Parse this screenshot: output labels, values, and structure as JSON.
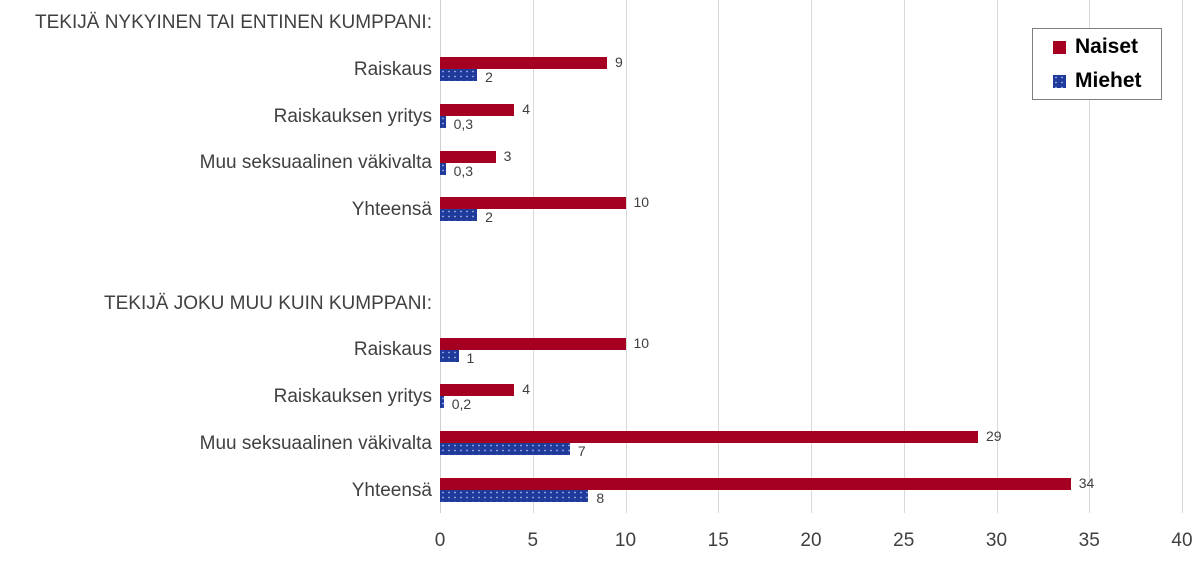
{
  "chart_data": {
    "type": "bar",
    "orientation": "horizontal",
    "title": "",
    "xlabel": "",
    "ylabel": "",
    "xlim": [
      0,
      40
    ],
    "x_ticks": [
      0,
      5,
      10,
      15,
      20,
      25,
      30,
      35,
      40
    ],
    "grid": true,
    "legend_position": "top-right",
    "categories": [
      "TEKIJÄ NYKYINEN TAI ENTINEN KUMPPANI:",
      "Raiskaus",
      "Raiskauksen yritys",
      "Muu seksuaalinen väkivalta",
      "Yhteensä",
      "",
      "TEKIJÄ JOKU MUU KUIN KUMPPANI:",
      "Raiskaus",
      "Raiskauksen yritys",
      "Muu seksuaalinen väkivalta",
      "Yhteensä"
    ],
    "series": [
      {
        "name": "Naiset",
        "color": "#a50021",
        "values": [
          null,
          9,
          4,
          3,
          10,
          null,
          null,
          10,
          4,
          29,
          34
        ],
        "labels": [
          "",
          "9",
          "4",
          "3",
          "10",
          "",
          "",
          "10",
          "4",
          "29",
          "34"
        ]
      },
      {
        "name": "Miehet",
        "color": "#1f3a9a",
        "values": [
          null,
          2,
          0.3,
          0.3,
          2,
          null,
          null,
          1,
          0.2,
          7,
          8
        ],
        "labels": [
          "",
          "2",
          "0,3",
          "0,3",
          "2",
          "",
          "",
          "1",
          "0,2",
          "7",
          "8"
        ]
      }
    ]
  },
  "legend": {
    "naiset": "Naiset",
    "miehet": "Miehet"
  },
  "ticks": [
    "0",
    "5",
    "10",
    "15",
    "20",
    "25",
    "30",
    "35",
    "40"
  ]
}
